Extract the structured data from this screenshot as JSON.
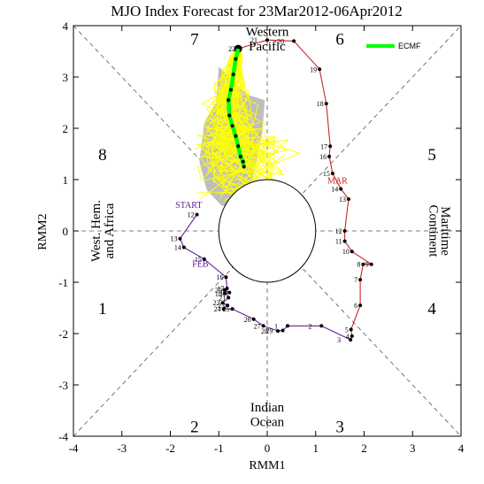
{
  "chart_data": {
    "type": "line",
    "title": "MJO Index Forecast for 23Mar2012-06Apr2012",
    "xlabel": "RMM1",
    "ylabel": "RMM2",
    "xlim": [
      -4,
      4
    ],
    "ylim": [
      -4,
      4
    ],
    "xticks": [
      "-4",
      "-3",
      "-2",
      "-1",
      "0",
      "1",
      "2",
      "3",
      "4"
    ],
    "yticks": [
      "-4",
      "-3",
      "-2",
      "-1",
      "0",
      "1",
      "2",
      "3",
      "4"
    ],
    "phase_numbers": [
      "1",
      "2",
      "3",
      "4",
      "5",
      "6",
      "7",
      "8"
    ],
    "region_labels": {
      "top": [
        "Western",
        "Pacific"
      ],
      "bottom": [
        "Indian",
        "Ocean"
      ],
      "left": [
        "West. Hem.",
        "and Africa"
      ],
      "right": [
        "Maritime",
        "Continent"
      ]
    },
    "legend": {
      "label": "ECMF",
      "color": "#00ff00",
      "placement": "top-right"
    },
    "colors": {
      "feb": "#6a1b9a",
      "mar": "#c62828",
      "ensemble": "#ffff00",
      "spread": "#bebebe",
      "forecast": "#00ff00"
    },
    "month_labels": [
      {
        "text": "START",
        "x": -1.62,
        "y": 0.45
      },
      {
        "text": "FEB",
        "x": -1.38,
        "y": -0.7
      },
      {
        "text": "MAR",
        "x": 1.45,
        "y": 0.92
      }
    ],
    "observed_feb": [
      {
        "day": "12",
        "x": -1.45,
        "y": 0.32
      },
      {
        "day": "13",
        "x": -1.8,
        "y": -0.15
      },
      {
        "day": "14",
        "x": -1.72,
        "y": -0.32
      },
      {
        "day": "15",
        "x": -1.3,
        "y": -0.55
      },
      {
        "day": "16",
        "x": -0.85,
        "y": -0.9
      },
      {
        "day": "17",
        "x": -0.83,
        "y": -1.12
      },
      {
        "day": "18",
        "x": -0.88,
        "y": -1.22
      },
      {
        "day": "19",
        "x": -0.78,
        "y": -1.2
      },
      {
        "day": "20",
        "x": -0.88,
        "y": -1.15
      },
      {
        "day": "21",
        "x": -0.8,
        "y": -1.3
      },
      {
        "day": "22",
        "x": -0.92,
        "y": -1.4
      },
      {
        "day": "23",
        "x": -0.82,
        "y": -1.45
      },
      {
        "day": "24",
        "x": -0.9,
        "y": -1.52
      },
      {
        "day": "25",
        "x": -0.72,
        "y": -1.52
      },
      {
        "day": "26",
        "x": -0.28,
        "y": -1.72
      },
      {
        "day": "27",
        "x": -0.08,
        "y": -1.85
      },
      {
        "day": "28",
        "x": 0.22,
        "y": -1.95
      },
      {
        "day": "29",
        "x": 0.32,
        "y": -1.94
      },
      {
        "day": "1",
        "x": 0.42,
        "y": -1.85
      },
      {
        "day": "2",
        "x": 1.12,
        "y": -1.85
      },
      {
        "day": "3",
        "x": 1.72,
        "y": -2.12
      }
    ],
    "observed_mar": [
      {
        "day": "4",
        "x": 1.75,
        "y": -2.05
      },
      {
        "day": "5",
        "x": 1.73,
        "y": -1.92
      },
      {
        "day": "6",
        "x": 1.92,
        "y": -1.45
      },
      {
        "day": "7",
        "x": 1.92,
        "y": -0.95
      },
      {
        "day": "8",
        "x": 1.98,
        "y": -0.65
      },
      {
        "day": "9",
        "x": 2.15,
        "y": -0.65
      },
      {
        "day": "10",
        "x": 1.75,
        "y": -0.4
      },
      {
        "day": "11",
        "x": 1.6,
        "y": -0.2
      },
      {
        "day": "12",
        "x": 1.6,
        "y": 0.0
      },
      {
        "day": "13",
        "x": 1.68,
        "y": 0.62
      },
      {
        "day": "14",
        "x": 1.52,
        "y": 0.82
      },
      {
        "day": "15",
        "x": 1.35,
        "y": 1.12
      },
      {
        "day": "16",
        "x": 1.28,
        "y": 1.45
      },
      {
        "day": "17",
        "x": 1.3,
        "y": 1.65
      },
      {
        "day": "18",
        "x": 1.22,
        "y": 2.48
      },
      {
        "day": "19",
        "x": 1.08,
        "y": 3.15
      },
      {
        "day": "20",
        "x": 0.55,
        "y": 3.7
      },
      {
        "day": "21",
        "x": 0.0,
        "y": 3.72
      },
      {
        "day": "22",
        "x": -0.6,
        "y": 3.55
      }
    ],
    "forecast": [
      {
        "x": -0.6,
        "y": 3.55
      },
      {
        "x": -0.65,
        "y": 3.35
      },
      {
        "x": -0.7,
        "y": 3.05
      },
      {
        "x": -0.75,
        "y": 2.75
      },
      {
        "x": -0.8,
        "y": 2.55
      },
      {
        "x": -0.78,
        "y": 2.25
      },
      {
        "x": -0.72,
        "y": 2.05
      },
      {
        "x": -0.65,
        "y": 1.85
      },
      {
        "x": -0.6,
        "y": 1.65
      },
      {
        "x": -0.55,
        "y": 1.45
      },
      {
        "x": -0.5,
        "y": 1.35
      },
      {
        "x": -0.48,
        "y": 1.25
      }
    ],
    "spread_polygon": [
      [
        -1.0,
        3.2
      ],
      [
        -0.4,
        2.65
      ],
      [
        -0.05,
        2.55
      ],
      [
        -0.1,
        1.95
      ],
      [
        -0.35,
        0.75
      ],
      [
        -0.65,
        0.42
      ],
      [
        -0.95,
        0.5
      ],
      [
        -1.25,
        0.8
      ],
      [
        -1.4,
        1.35
      ],
      [
        -1.3,
        2.1
      ],
      [
        -1.05,
        2.5
      ]
    ],
    "grid": false
  }
}
